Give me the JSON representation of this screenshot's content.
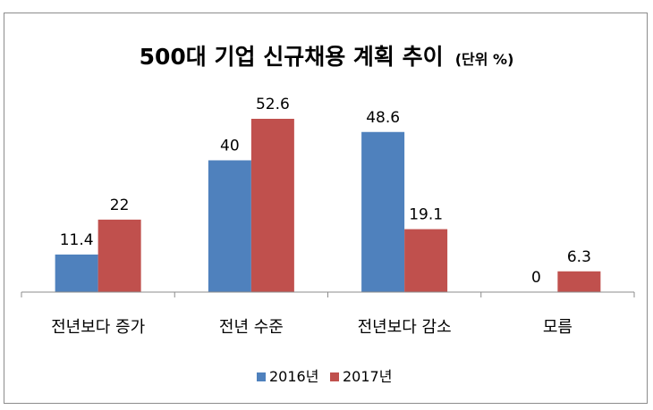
{
  "chart_data": {
    "type": "bar",
    "title": "500대 기업 신규채용 계획 추이",
    "subtitle": "(단위 %)",
    "categories": [
      "전년보다 증가",
      "전년 수준",
      "전년보다 감소",
      "모름"
    ],
    "series": [
      {
        "name": "2016년",
        "values": [
          11.4,
          40,
          48.6,
          0
        ],
        "labels": [
          "11.4",
          "40",
          "48.6",
          "0"
        ],
        "color": "#4f81bd"
      },
      {
        "name": "2017년",
        "values": [
          22,
          52.6,
          19.1,
          6.3
        ],
        "labels": [
          "22",
          "52.6",
          "19.1",
          "6.3"
        ],
        "color": "#c0504d"
      }
    ],
    "ylim": [
      0,
      52.6
    ],
    "grid": false,
    "legend": "bottom"
  }
}
